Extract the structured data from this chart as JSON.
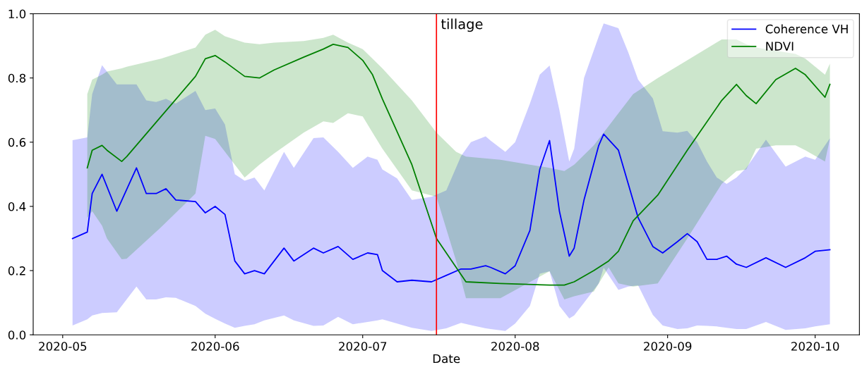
{
  "chart_data": {
    "type": "line",
    "xlabel": "Date",
    "xlim": [
      "2020-04-25",
      "2020-10-10"
    ],
    "ylim": [
      0,
      1
    ],
    "xticks": [
      {
        "value": "2020-05-01",
        "label": "2020-05"
      },
      {
        "value": "2020-06-01",
        "label": "2020-06"
      },
      {
        "value": "2020-07-01",
        "label": "2020-07"
      },
      {
        "value": "2020-08-01",
        "label": "2020-08"
      },
      {
        "value": "2020-09-01",
        "label": "2020-09"
      },
      {
        "value": "2020-10-01",
        "label": "2020-10"
      }
    ],
    "yticks": [
      {
        "value": 0,
        "label": "0.0"
      },
      {
        "value": 0.2,
        "label": "0.2"
      },
      {
        "value": 0.4,
        "label": "0.4"
      },
      {
        "value": 0.6,
        "label": "0.6"
      },
      {
        "value": 0.8,
        "label": "0.8"
      },
      {
        "value": 1,
        "label": "1.0"
      }
    ],
    "grid": false,
    "legend": "top right",
    "marker": "none",
    "line_style": "solid",
    "ref_lines": [
      {
        "axis": "x",
        "value": "2020-07-16",
        "label": "tillage",
        "color": "#ff0000"
      }
    ],
    "series": [
      {
        "name": "Coherence VH",
        "color": "#0000ff",
        "x": [
          "2020-05-03",
          "2020-05-06",
          "2020-05-07",
          "2020-05-09",
          "2020-05-12",
          "2020-05-16",
          "2020-05-18",
          "2020-05-20",
          "2020-05-22",
          "2020-05-24",
          "2020-05-28",
          "2020-05-30",
          "2020-06-01",
          "2020-06-03",
          "2020-06-05",
          "2020-06-07",
          "2020-06-09",
          "2020-06-11",
          "2020-06-15",
          "2020-06-17",
          "2020-06-21",
          "2020-06-23",
          "2020-06-26",
          "2020-06-29",
          "2020-07-02",
          "2020-07-04",
          "2020-07-05",
          "2020-07-08",
          "2020-07-11",
          "2020-07-15",
          "2020-07-18",
          "2020-07-21",
          "2020-07-23",
          "2020-07-26",
          "2020-07-27",
          "2020-07-30",
          "2020-08-01",
          "2020-08-04",
          "2020-08-06",
          "2020-08-08",
          "2020-08-10",
          "2020-08-12",
          "2020-08-13",
          "2020-08-15",
          "2020-08-18",
          "2020-08-19",
          "2020-08-22",
          "2020-08-24",
          "2020-08-26",
          "2020-08-29",
          "2020-08-31",
          "2020-09-03",
          "2020-09-05",
          "2020-09-07",
          "2020-09-09",
          "2020-09-11",
          "2020-09-13",
          "2020-09-15",
          "2020-09-17",
          "2020-09-21",
          "2020-09-25",
          "2020-09-29",
          "2020-10-01",
          "2020-10-04"
        ],
        "values": [
          0.3,
          0.32,
          0.44,
          0.5,
          0.385,
          0.52,
          0.44,
          0.44,
          0.455,
          0.42,
          0.415,
          0.38,
          0.4,
          0.375,
          0.23,
          0.19,
          0.2,
          0.19,
          0.27,
          0.23,
          0.27,
          0.255,
          0.275,
          0.235,
          0.255,
          0.25,
          0.2,
          0.165,
          0.17,
          0.165,
          0.185,
          0.205,
          0.205,
          0.215,
          0.21,
          0.19,
          0.215,
          0.325,
          0.515,
          0.605,
          0.385,
          0.245,
          0.27,
          0.42,
          0.59,
          0.625,
          0.575,
          0.47,
          0.365,
          0.275,
          0.255,
          0.29,
          0.315,
          0.29,
          0.235,
          0.235,
          0.245,
          0.22,
          0.21,
          0.24,
          0.21,
          0.24,
          0.26,
          0.265
        ],
        "upper": [
          0.606,
          0.615,
          0.75,
          0.84,
          0.78,
          0.78,
          0.73,
          0.725,
          0.735,
          0.72,
          0.76,
          0.7,
          0.705,
          0.655,
          0.5,
          0.48,
          0.49,
          0.45,
          0.57,
          0.52,
          0.613,
          0.615,
          0.57,
          0.52,
          0.555,
          0.545,
          0.515,
          0.487,
          0.42,
          0.43,
          0.45,
          0.557,
          0.6,
          0.618,
          0.605,
          0.57,
          0.6,
          0.72,
          0.81,
          0.839,
          0.7,
          0.54,
          0.58,
          0.8,
          0.93,
          0.97,
          0.955,
          0.88,
          0.795,
          0.736,
          0.634,
          0.63,
          0.635,
          0.6,
          0.54,
          0.49,
          0.47,
          0.49,
          0.52,
          0.608,
          0.524,
          0.555,
          0.545,
          0.612
        ],
        "lower": [
          0.029,
          0.048,
          0.06,
          0.068,
          0.07,
          0.15,
          0.11,
          0.11,
          0.117,
          0.115,
          0.09,
          0.066,
          0.05,
          0.035,
          0.022,
          0.028,
          0.033,
          0.045,
          0.06,
          0.045,
          0.028,
          0.029,
          0.056,
          0.033,
          0.04,
          0.045,
          0.048,
          0.035,
          0.022,
          0.012,
          0.02,
          0.037,
          0.03,
          0.02,
          0.018,
          0.012,
          0.035,
          0.09,
          0.19,
          0.198,
          0.09,
          0.051,
          0.06,
          0.1,
          0.16,
          0.209,
          0.14,
          0.15,
          0.154,
          0.062,
          0.029,
          0.018,
          0.02,
          0.029,
          0.028,
          0.026,
          0.022,
          0.018,
          0.018,
          0.04,
          0.015,
          0.02,
          0.026,
          0.033
        ]
      },
      {
        "name": "NDVI",
        "color": "#008000",
        "x": [
          "2020-05-06",
          "2020-05-07",
          "2020-05-09",
          "2020-05-10",
          "2020-05-13",
          "2020-05-14",
          "2020-05-21",
          "2020-05-28",
          "2020-05-30",
          "2020-06-01",
          "2020-06-03",
          "2020-06-07",
          "2020-06-10",
          "2020-06-13",
          "2020-06-19",
          "2020-06-23",
          "2020-06-25",
          "2020-06-28",
          "2020-07-01",
          "2020-07-03",
          "2020-07-05",
          "2020-07-11",
          "2020-07-16",
          "2020-07-20",
          "2020-07-22",
          "2020-07-29",
          "2020-08-08",
          "2020-08-11",
          "2020-08-13",
          "2020-08-17",
          "2020-08-20",
          "2020-08-22",
          "2020-08-25",
          "2020-08-30",
          "2020-09-05",
          "2020-09-12",
          "2020-09-15",
          "2020-09-17",
          "2020-09-19",
          "2020-09-23",
          "2020-09-27",
          "2020-09-29",
          "2020-10-03",
          "2020-10-04"
        ],
        "values": [
          0.52,
          0.575,
          0.59,
          0.575,
          0.54,
          0.555,
          0.68,
          0.805,
          0.86,
          0.87,
          0.85,
          0.805,
          0.8,
          0.825,
          0.865,
          0.89,
          0.905,
          0.895,
          0.855,
          0.81,
          0.735,
          0.53,
          0.3,
          0.21,
          0.165,
          0.16,
          0.155,
          0.155,
          0.165,
          0.2,
          0.23,
          0.26,
          0.355,
          0.435,
          0.575,
          0.73,
          0.78,
          0.745,
          0.72,
          0.795,
          0.83,
          0.81,
          0.74,
          0.78
        ],
        "upper": [
          0.75,
          0.795,
          0.81,
          0.82,
          0.83,
          0.835,
          0.86,
          0.895,
          0.935,
          0.95,
          0.93,
          0.91,
          0.905,
          0.91,
          0.915,
          0.925,
          0.935,
          0.91,
          0.89,
          0.86,
          0.83,
          0.73,
          0.63,
          0.57,
          0.555,
          0.545,
          0.52,
          0.51,
          0.53,
          0.59,
          0.65,
          0.69,
          0.75,
          0.8,
          0.855,
          0.92,
          0.92,
          0.905,
          0.895,
          0.885,
          0.875,
          0.86,
          0.81,
          0.845
        ],
        "lower": [
          0.365,
          0.385,
          0.34,
          0.3,
          0.235,
          0.237,
          0.335,
          0.44,
          0.62,
          0.61,
          0.57,
          0.49,
          0.53,
          0.565,
          0.63,
          0.665,
          0.66,
          0.69,
          0.68,
          0.63,
          0.58,
          0.45,
          0.43,
          0.23,
          0.114,
          0.114,
          0.198,
          0.11,
          0.12,
          0.135,
          0.21,
          0.16,
          0.15,
          0.16,
          0.3,
          0.47,
          0.51,
          0.515,
          0.58,
          0.59,
          0.59,
          0.575,
          0.54,
          0.61
        ]
      }
    ]
  }
}
